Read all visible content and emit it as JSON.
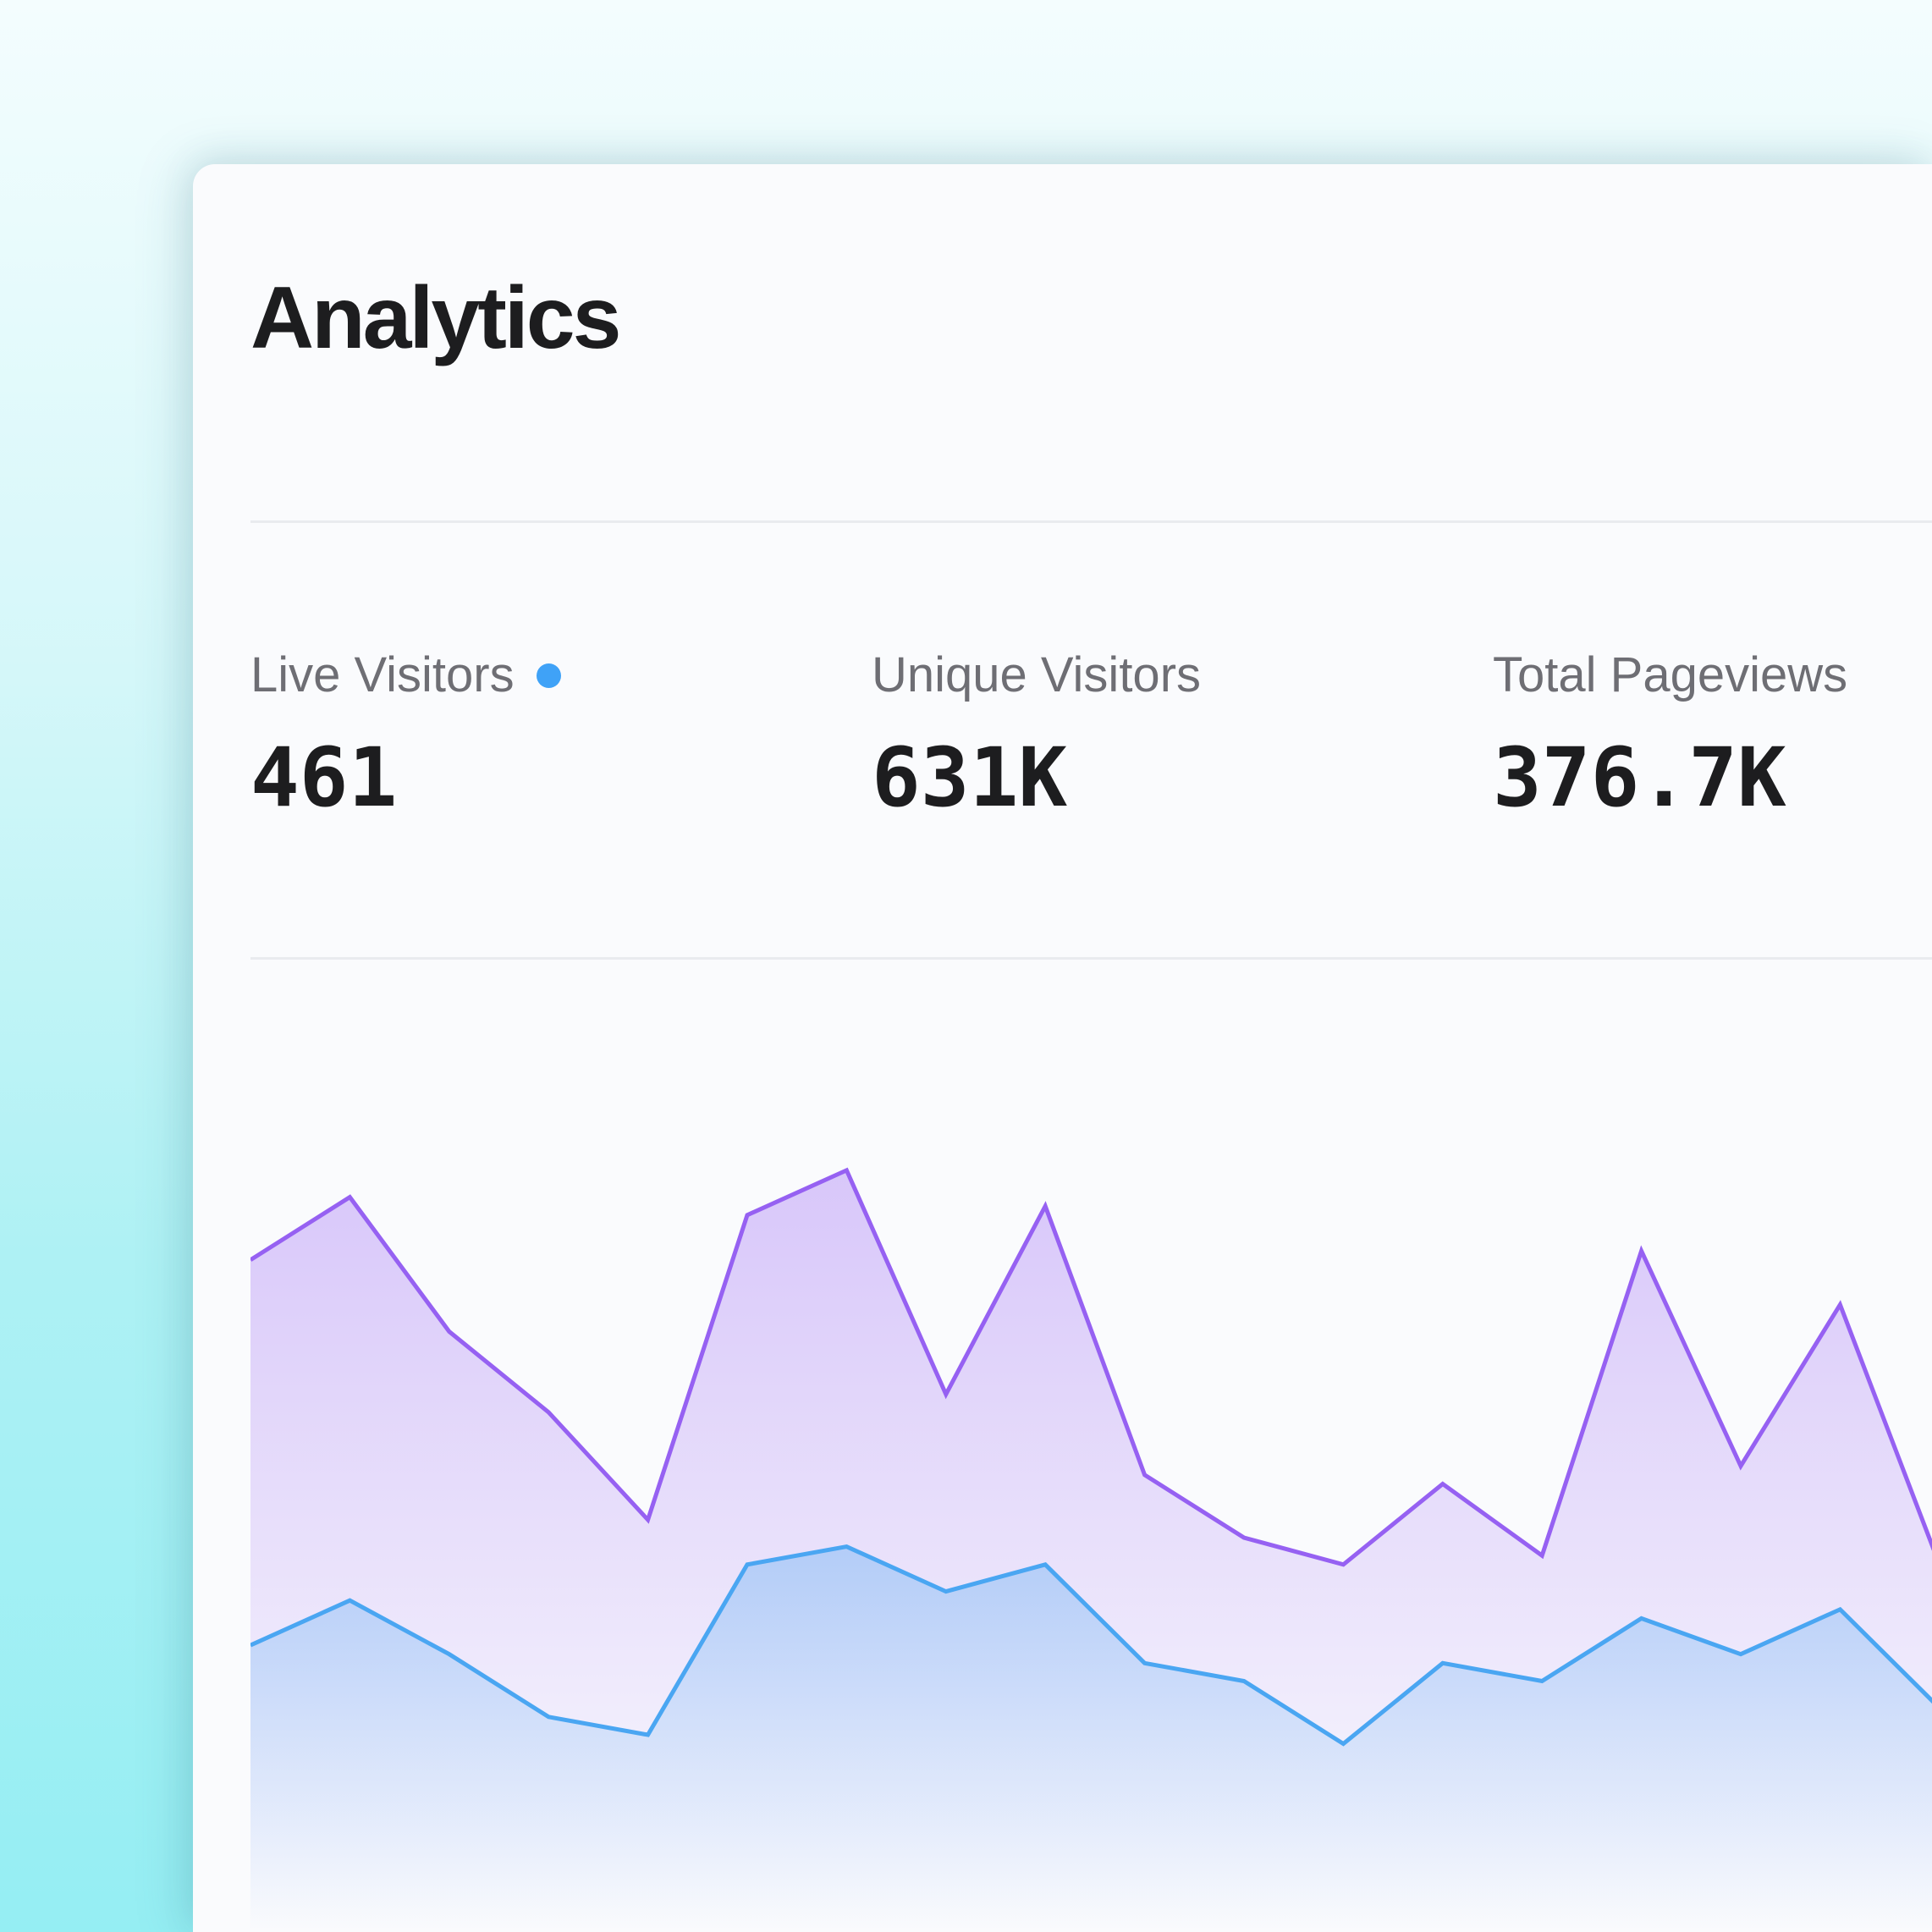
{
  "header": {
    "title": "Analytics"
  },
  "stats": [
    {
      "label": "Live Visitors",
      "value": "461",
      "live": true
    },
    {
      "label": "Unique Visitors",
      "value": "631K"
    },
    {
      "label": "Total Pageviews",
      "value": "376.7K"
    }
  ],
  "colors": {
    "live_dot": "#3fa2f7",
    "series_1": "#9661f2",
    "series_2": "#4aa6f2"
  },
  "chart_data": {
    "type": "area",
    "ylim": [
      0,
      100
    ],
    "series": [
      {
        "values": [
          75,
          82,
          67,
          58,
          46,
          80,
          85,
          60,
          81,
          51,
          44,
          41,
          50,
          42,
          76,
          52,
          70,
          41
        ]
      },
      {
        "values": [
          32,
          37,
          31,
          24,
          22,
          41,
          43,
          38,
          41,
          30,
          28,
          21,
          30,
          28,
          35,
          31,
          36,
          25
        ]
      }
    ]
  }
}
